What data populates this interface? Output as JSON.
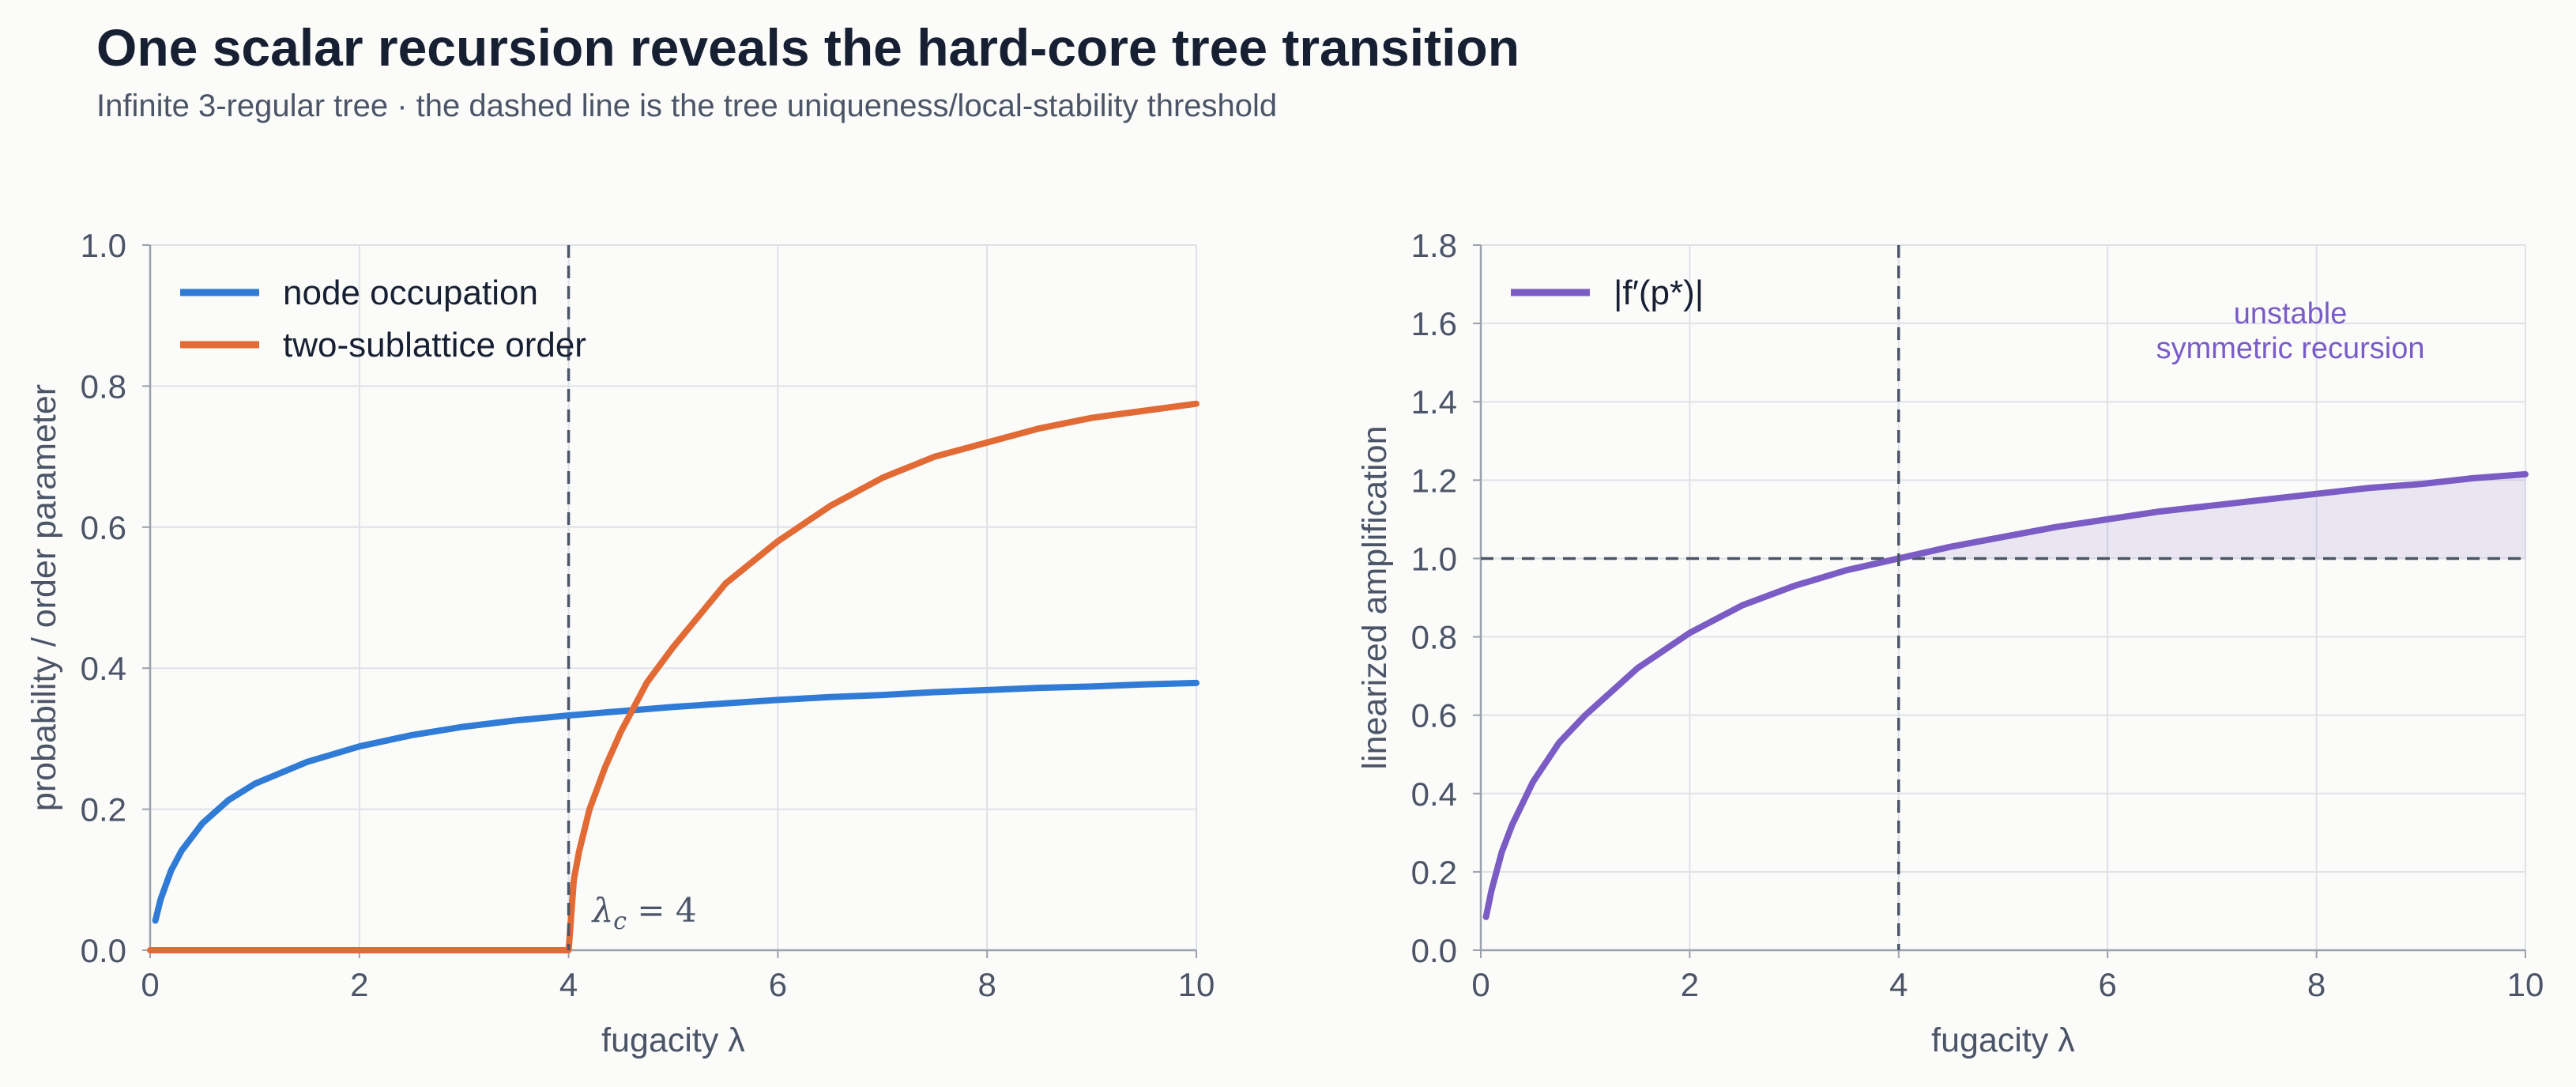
{
  "header": {
    "title": "One scalar recursion reveals the hard-core tree transition",
    "subtitle": "Infinite 3-regular tree · the dashed line is the tree uniqueness/local-stability threshold"
  },
  "colors": {
    "occupation": "#2f7bd6",
    "order": "#e26a34",
    "amplification": "#7b5cc4",
    "threshold": "#4b5567",
    "grid": "#dfe1e8"
  },
  "chart_data": [
    {
      "type": "line",
      "xlabel": "fugacity λ",
      "ylabel": "probability / order parameter",
      "xlim": [
        0,
        10
      ],
      "ylim": [
        0,
        1.0
      ],
      "xticks": [
        "0",
        "2",
        "4",
        "6",
        "8",
        "10"
      ],
      "yticks": [
        "0.0",
        "0.2",
        "0.4",
        "0.6",
        "0.8",
        "1.0"
      ],
      "grid": true,
      "legend_position": "top-left",
      "threshold_x": 4,
      "threshold_label": "λ_c = 4",
      "threshold_label_parts": {
        "base": "λ",
        "sub": "c",
        "rest": " = 4"
      },
      "series": [
        {
          "name": "node occupation",
          "x": [
            0.05,
            0.1,
            0.2,
            0.3,
            0.5,
            0.75,
            1.0,
            1.5,
            2.0,
            2.5,
            3.0,
            3.5,
            4.0,
            4.5,
            5.0,
            5.5,
            6.0,
            6.5,
            7.0,
            7.5,
            8.0,
            8.5,
            9.0,
            9.5,
            10.0
          ],
          "y": [
            0.042,
            0.072,
            0.113,
            0.141,
            0.18,
            0.213,
            0.236,
            0.267,
            0.289,
            0.305,
            0.317,
            0.326,
            0.333,
            0.339,
            0.345,
            0.35,
            0.355,
            0.359,
            0.362,
            0.366,
            0.369,
            0.372,
            0.374,
            0.377,
            0.379
          ]
        },
        {
          "name": "two-sublattice order",
          "x": [
            0,
            0.5,
            1,
            2,
            3,
            3.95,
            4.0,
            4.05,
            4.1,
            4.2,
            4.35,
            4.5,
            4.75,
            5.0,
            5.5,
            6.0,
            6.5,
            7.0,
            7.5,
            8.0,
            8.5,
            9.0,
            9.5,
            10.0
          ],
          "y": [
            0,
            0,
            0,
            0,
            0,
            0,
            0.0,
            0.1,
            0.14,
            0.2,
            0.26,
            0.31,
            0.38,
            0.43,
            0.52,
            0.58,
            0.63,
            0.67,
            0.7,
            0.72,
            0.74,
            0.755,
            0.765,
            0.775
          ]
        }
      ]
    },
    {
      "type": "line",
      "xlabel": "fugacity λ",
      "ylabel": "linearized amplification",
      "xlim": [
        0,
        10
      ],
      "ylim": [
        0,
        1.8
      ],
      "xticks": [
        "0",
        "2",
        "4",
        "6",
        "8",
        "10"
      ],
      "yticks": [
        "0.0",
        "0.2",
        "0.4",
        "0.6",
        "0.8",
        "1.0",
        "1.2",
        "1.4",
        "1.6",
        "1.8"
      ],
      "grid": true,
      "legend_position": "top-left",
      "threshold_x": 4,
      "threshold_y": 1.0,
      "shaded_region": "above 1.0 for λ > 4",
      "annotation": [
        "unstable",
        "symmetric recursion"
      ],
      "series": [
        {
          "name": "|f′(p*)|",
          "x": [
            0.05,
            0.1,
            0.2,
            0.3,
            0.5,
            0.75,
            1.0,
            1.5,
            2.0,
            2.5,
            3.0,
            3.5,
            4.0,
            4.5,
            5.0,
            5.5,
            6.0,
            6.5,
            7.0,
            7.5,
            8.0,
            8.5,
            9.0,
            9.5,
            10.0
          ],
          "y": [
            0.085,
            0.15,
            0.25,
            0.32,
            0.43,
            0.53,
            0.6,
            0.72,
            0.81,
            0.88,
            0.93,
            0.97,
            1.0,
            1.03,
            1.055,
            1.08,
            1.1,
            1.12,
            1.135,
            1.15,
            1.165,
            1.18,
            1.19,
            1.205,
            1.215
          ]
        }
      ]
    }
  ]
}
